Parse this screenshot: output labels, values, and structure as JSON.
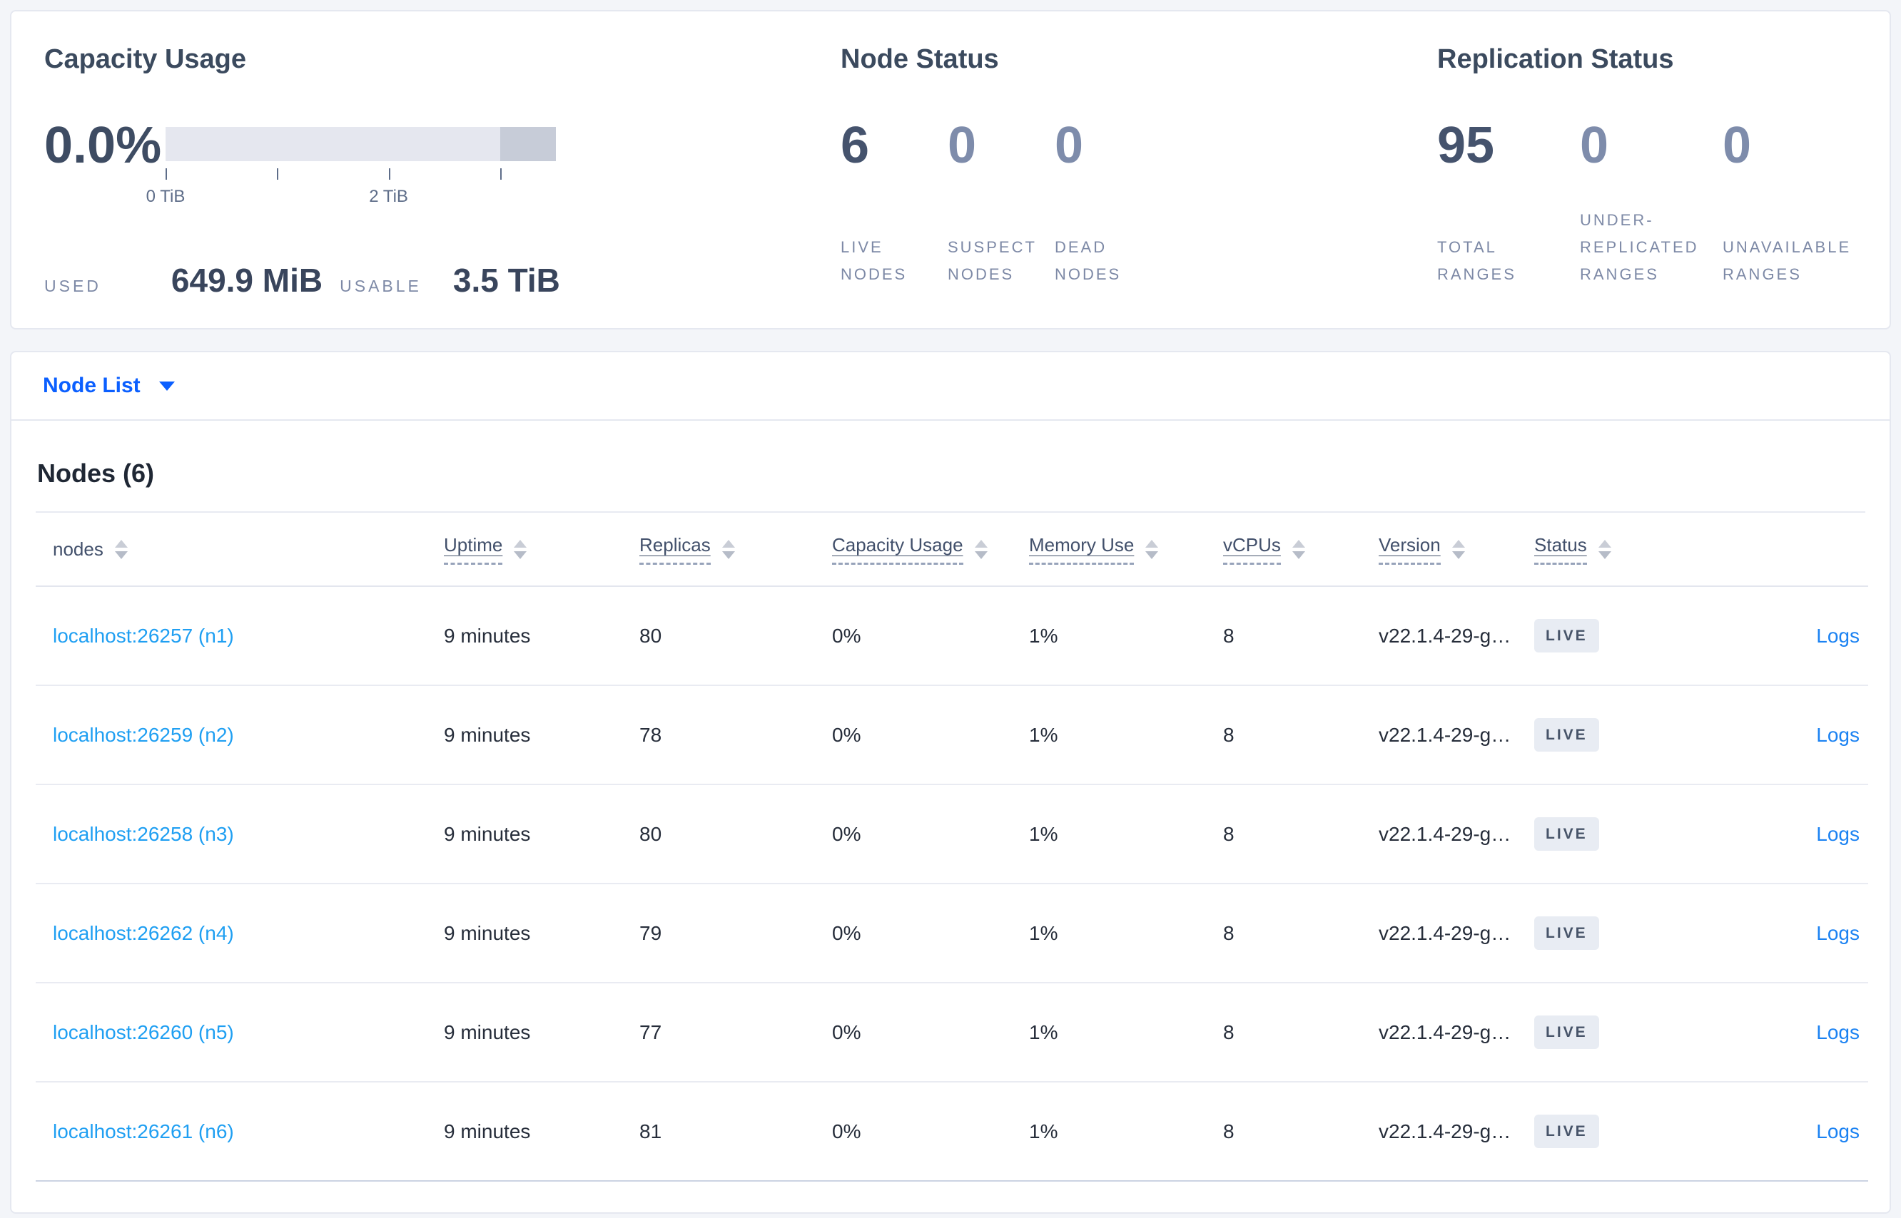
{
  "capacity": {
    "title": "Capacity Usage",
    "percent": "0.0%",
    "used_label": "USED",
    "used_value": "649.9 MiB",
    "usable_label": "USABLE",
    "usable_value": "3.5 TiB",
    "chart": {
      "type": "bar",
      "max_tib": 3.5,
      "tick_interval_tib": 1,
      "tick_labels": {
        "0": "0 TiB",
        "2": "2 TiB"
      },
      "dark_segment_from_tib": 3.0
    }
  },
  "node_status": {
    "title": "Node Status",
    "stats": [
      {
        "value": "6",
        "label": "LIVE NODES",
        "muted": false
      },
      {
        "value": "0",
        "label": "SUSPECT NODES",
        "muted": true
      },
      {
        "value": "0",
        "label": "DEAD NODES",
        "muted": true
      }
    ]
  },
  "replication_status": {
    "title": "Replication Status",
    "stats": [
      {
        "value": "95",
        "label": "TOTAL RANGES",
        "muted": false
      },
      {
        "value": "0",
        "label": "UNDER-REPLICATED RANGES",
        "muted": true
      },
      {
        "value": "0",
        "label": "UNAVAILABLE RANGES",
        "muted": true
      }
    ]
  },
  "view_selector": {
    "label": "Node List"
  },
  "nodes_panel": {
    "title": "Nodes (6)",
    "columns": [
      {
        "key": "node",
        "label": "nodes",
        "sortable": true,
        "dashed": false
      },
      {
        "key": "uptime",
        "label": "Uptime",
        "sortable": true,
        "dashed": true
      },
      {
        "key": "replicas",
        "label": "Replicas",
        "sortable": true,
        "dashed": true
      },
      {
        "key": "capacity",
        "label": "Capacity Usage",
        "sortable": true,
        "dashed": true
      },
      {
        "key": "memory",
        "label": "Memory Use",
        "sortable": true,
        "dashed": true
      },
      {
        "key": "vcpus",
        "label": "vCPUs",
        "sortable": true,
        "dashed": true
      },
      {
        "key": "version",
        "label": "Version",
        "sortable": true,
        "dashed": true
      },
      {
        "key": "status",
        "label": "Status",
        "sortable": true,
        "dashed": true
      },
      {
        "key": "logs",
        "label": "",
        "sortable": false,
        "dashed": false
      }
    ],
    "rows": [
      {
        "node": "localhost:26257 (n1)",
        "uptime": "9 minutes",
        "replicas": "80",
        "capacity": "0%",
        "memory": "1%",
        "vcpus": "8",
        "version": "v22.1.4-29-g…",
        "status": "LIVE",
        "logs": "Logs"
      },
      {
        "node": "localhost:26259 (n2)",
        "uptime": "9 minutes",
        "replicas": "78",
        "capacity": "0%",
        "memory": "1%",
        "vcpus": "8",
        "version": "v22.1.4-29-g…",
        "status": "LIVE",
        "logs": "Logs"
      },
      {
        "node": "localhost:26258 (n3)",
        "uptime": "9 minutes",
        "replicas": "80",
        "capacity": "0%",
        "memory": "1%",
        "vcpus": "8",
        "version": "v22.1.4-29-g…",
        "status": "LIVE",
        "logs": "Logs"
      },
      {
        "node": "localhost:26262 (n4)",
        "uptime": "9 minutes",
        "replicas": "79",
        "capacity": "0%",
        "memory": "1%",
        "vcpus": "8",
        "version": "v22.1.4-29-g…",
        "status": "LIVE",
        "logs": "Logs"
      },
      {
        "node": "localhost:26260 (n5)",
        "uptime": "9 minutes",
        "replicas": "77",
        "capacity": "0%",
        "memory": "1%",
        "vcpus": "8",
        "version": "v22.1.4-29-g…",
        "status": "LIVE",
        "logs": "Logs"
      },
      {
        "node": "localhost:26261 (n6)",
        "uptime": "9 minutes",
        "replicas": "81",
        "capacity": "0%",
        "memory": "1%",
        "vcpus": "8",
        "version": "v22.1.4-29-g…",
        "status": "LIVE",
        "logs": "Logs"
      }
    ]
  },
  "colors": {
    "accent_blue": "#0b5fff",
    "node_link_blue": "#1f9ff2",
    "logs_link_blue": "#1b82f2",
    "badge_bg": "#e8ecf3",
    "badge_text": "#475469"
  }
}
